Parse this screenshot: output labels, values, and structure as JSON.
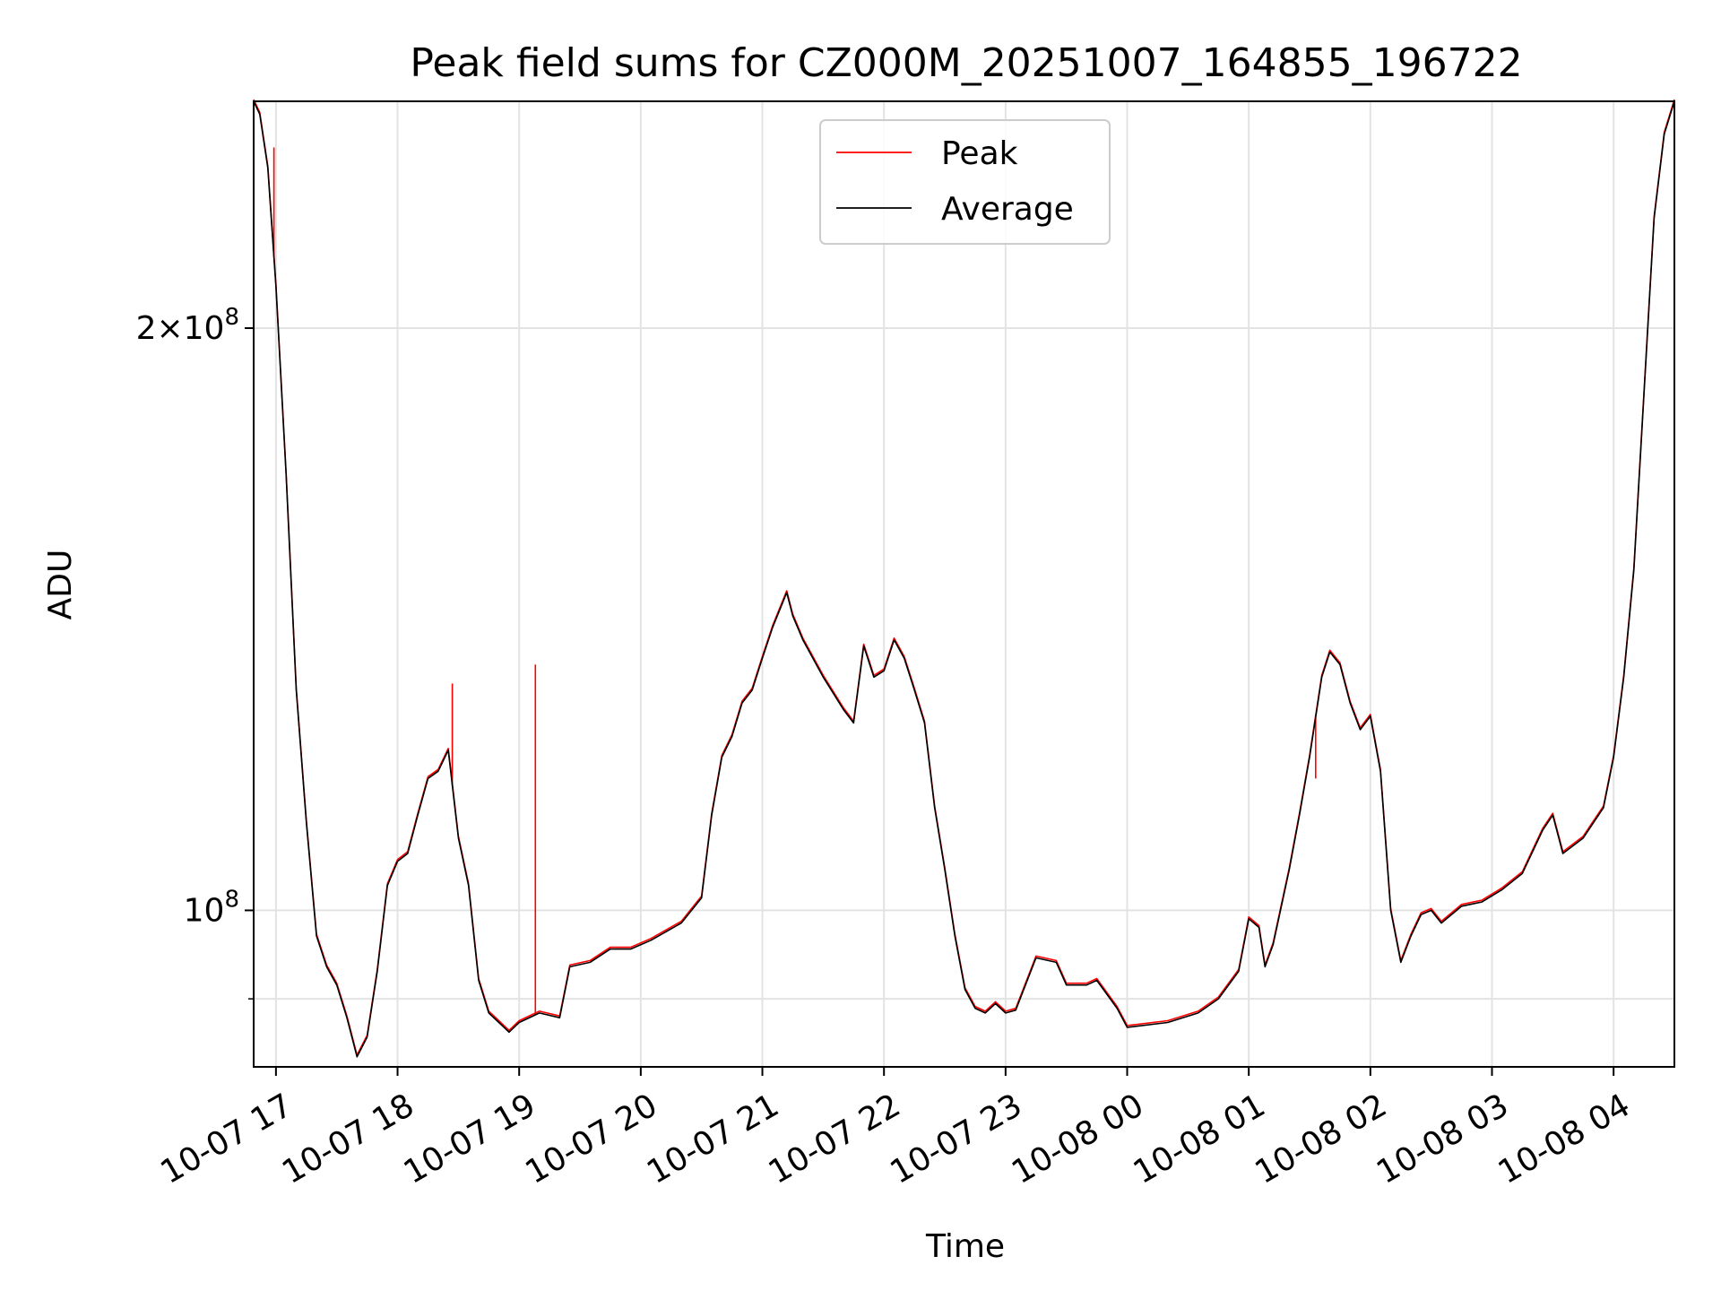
{
  "chart_data": {
    "type": "line",
    "title": "Peak field sums for CZ000M_20251007_164855_196722",
    "xlabel": "Time",
    "ylabel": "ADU",
    "y_scale": "log",
    "ylim": [
      83000000,
      262000000
    ],
    "xlim": [
      "2025-10-07 16:49",
      "2025-10-08 04:30"
    ],
    "x_ticks": [
      "10-07 17",
      "10-07 18",
      "10-07 19",
      "10-07 20",
      "10-07 21",
      "10-07 22",
      "10-07 23",
      "10-08 00",
      "10-08 01",
      "10-08 02",
      "10-08 03",
      "10-08 04"
    ],
    "y_tick_labels": [
      {
        "value": 200000000,
        "mantissa": "2",
        "times": "×",
        "base": "10",
        "exp": "8"
      },
      {
        "value": 100000000,
        "base": "10",
        "exp": "8"
      }
    ],
    "grid": true,
    "legend": {
      "position": "top-center"
    },
    "colors": {
      "peak": "#ff0000",
      "average": "#000000",
      "grid": "#e3e3e3"
    },
    "series": [
      {
        "name": "Peak",
        "color": "#ff0000",
        "spikes": [
          {
            "x": "2025-10-07 16:59",
            "y": 248000000
          },
          {
            "x": "2025-10-07 18:27",
            "y": 131000000
          },
          {
            "x": "2025-10-07 19:08",
            "y": 134000000
          },
          {
            "x": "2025-10-08 01:33",
            "y": 117000000
          }
        ]
      },
      {
        "name": "Average",
        "color": "#000000",
        "points": [
          [
            "2025-10-07 16:49",
            262000000
          ],
          [
            "2025-10-07 16:52",
            258000000
          ],
          [
            "2025-10-07 16:56",
            242000000
          ],
          [
            "2025-10-07 17:00",
            210000000
          ],
          [
            "2025-10-07 17:05",
            168000000
          ],
          [
            "2025-10-07 17:10",
            130000000
          ],
          [
            "2025-10-07 17:15",
            111000000
          ],
          [
            "2025-10-07 17:20",
            97000000
          ],
          [
            "2025-10-07 17:25",
            93500000
          ],
          [
            "2025-10-07 17:30",
            91500000
          ],
          [
            "2025-10-07 17:35",
            88000000
          ],
          [
            "2025-10-07 17:40",
            84000000
          ],
          [
            "2025-10-07 17:45",
            86000000
          ],
          [
            "2025-10-07 17:50",
            93000000
          ],
          [
            "2025-10-07 17:55",
            103000000
          ],
          [
            "2025-10-07 18:00",
            106000000
          ],
          [
            "2025-10-07 18:05",
            107000000
          ],
          [
            "2025-10-07 18:10",
            112000000
          ],
          [
            "2025-10-07 18:15",
            117000000
          ],
          [
            "2025-10-07 18:20",
            118000000
          ],
          [
            "2025-10-07 18:25",
            121000000
          ],
          [
            "2025-10-07 18:30",
            109000000
          ],
          [
            "2025-10-07 18:35",
            103000000
          ],
          [
            "2025-10-07 18:40",
            92000000
          ],
          [
            "2025-10-07 18:45",
            88500000
          ],
          [
            "2025-10-07 18:50",
            87500000
          ],
          [
            "2025-10-07 18:55",
            86500000
          ],
          [
            "2025-10-07 19:00",
            87500000
          ],
          [
            "2025-10-07 19:10",
            88500000
          ],
          [
            "2025-10-07 19:20",
            88000000
          ],
          [
            "2025-10-07 19:25",
            93500000
          ],
          [
            "2025-10-07 19:35",
            94000000
          ],
          [
            "2025-10-07 19:45",
            95500000
          ],
          [
            "2025-10-07 19:55",
            95500000
          ],
          [
            "2025-10-07 20:05",
            96500000
          ],
          [
            "2025-10-07 20:20",
            98500000
          ],
          [
            "2025-10-07 20:30",
            101500000
          ],
          [
            "2025-10-07 20:35",
            112000000
          ],
          [
            "2025-10-07 20:40",
            120000000
          ],
          [
            "2025-10-07 20:45",
            123000000
          ],
          [
            "2025-10-07 20:50",
            128000000
          ],
          [
            "2025-10-07 20:55",
            130000000
          ],
          [
            "2025-10-07 21:00",
            135000000
          ],
          [
            "2025-10-07 21:05",
            140000000
          ],
          [
            "2025-10-07 21:12",
            146000000
          ],
          [
            "2025-10-07 21:15",
            142000000
          ],
          [
            "2025-10-07 21:20",
            138000000
          ],
          [
            "2025-10-07 21:30",
            132000000
          ],
          [
            "2025-10-07 21:40",
            127000000
          ],
          [
            "2025-10-07 21:45",
            125000000
          ],
          [
            "2025-10-07 21:50",
            137000000
          ],
          [
            "2025-10-07 21:55",
            132000000
          ],
          [
            "2025-10-07 22:00",
            133000000
          ],
          [
            "2025-10-07 22:05",
            138000000
          ],
          [
            "2025-10-07 22:10",
            135000000
          ],
          [
            "2025-10-07 22:15",
            130000000
          ],
          [
            "2025-10-07 22:20",
            125000000
          ],
          [
            "2025-10-07 22:25",
            113000000
          ],
          [
            "2025-10-07 22:30",
            105000000
          ],
          [
            "2025-10-07 22:35",
            97000000
          ],
          [
            "2025-10-07 22:40",
            91000000
          ],
          [
            "2025-10-07 22:45",
            89000000
          ],
          [
            "2025-10-07 22:50",
            88500000
          ],
          [
            "2025-10-07 22:55",
            89500000
          ],
          [
            "2025-10-07 23:00",
            88500000
          ],
          [
            "2025-10-07 23:05",
            88800000
          ],
          [
            "2025-10-07 23:15",
            94500000
          ],
          [
            "2025-10-07 23:25",
            94000000
          ],
          [
            "2025-10-07 23:30",
            91500000
          ],
          [
            "2025-10-07 23:40",
            91500000
          ],
          [
            "2025-10-07 23:45",
            92000000
          ],
          [
            "2025-10-07 23:55",
            89000000
          ],
          [
            "2025-10-08 00:00",
            87000000
          ],
          [
            "2025-10-08 00:20",
            87500000
          ],
          [
            "2025-10-08 00:35",
            88500000
          ],
          [
            "2025-10-08 00:45",
            90000000
          ],
          [
            "2025-10-08 00:55",
            93000000
          ],
          [
            "2025-10-08 01:00",
            99000000
          ],
          [
            "2025-10-08 01:05",
            98000000
          ],
          [
            "2025-10-08 01:08",
            93500000
          ],
          [
            "2025-10-08 01:12",
            96000000
          ],
          [
            "2025-10-08 01:20",
            105000000
          ],
          [
            "2025-10-08 01:25",
            112000000
          ],
          [
            "2025-10-08 01:30",
            120000000
          ],
          [
            "2025-10-08 01:36",
            132000000
          ],
          [
            "2025-10-08 01:40",
            136000000
          ],
          [
            "2025-10-08 01:45",
            134000000
          ],
          [
            "2025-10-08 01:50",
            128000000
          ],
          [
            "2025-10-08 01:55",
            124000000
          ],
          [
            "2025-10-08 02:00",
            126000000
          ],
          [
            "2025-10-08 02:05",
            118000000
          ],
          [
            "2025-10-08 02:10",
            100000000
          ],
          [
            "2025-10-08 02:15",
            94000000
          ],
          [
            "2025-10-08 02:20",
            97000000
          ],
          [
            "2025-10-08 02:25",
            99500000
          ],
          [
            "2025-10-08 02:30",
            100000000
          ],
          [
            "2025-10-08 02:35",
            98500000
          ],
          [
            "2025-10-08 02:45",
            100500000
          ],
          [
            "2025-10-08 02:55",
            101000000
          ],
          [
            "2025-10-08 03:05",
            102500000
          ],
          [
            "2025-10-08 03:15",
            104500000
          ],
          [
            "2025-10-08 03:25",
            110000000
          ],
          [
            "2025-10-08 03:30",
            112000000
          ],
          [
            "2025-10-08 03:35",
            107000000
          ],
          [
            "2025-10-08 03:45",
            109000000
          ],
          [
            "2025-10-08 03:55",
            113000000
          ],
          [
            "2025-10-08 04:00",
            120000000
          ],
          [
            "2025-10-08 04:05",
            132000000
          ],
          [
            "2025-10-08 04:10",
            150000000
          ],
          [
            "2025-10-08 04:15",
            185000000
          ],
          [
            "2025-10-08 04:20",
            228000000
          ],
          [
            "2025-10-08 04:25",
            252000000
          ],
          [
            "2025-10-08 04:30",
            262000000
          ]
        ]
      }
    ]
  }
}
